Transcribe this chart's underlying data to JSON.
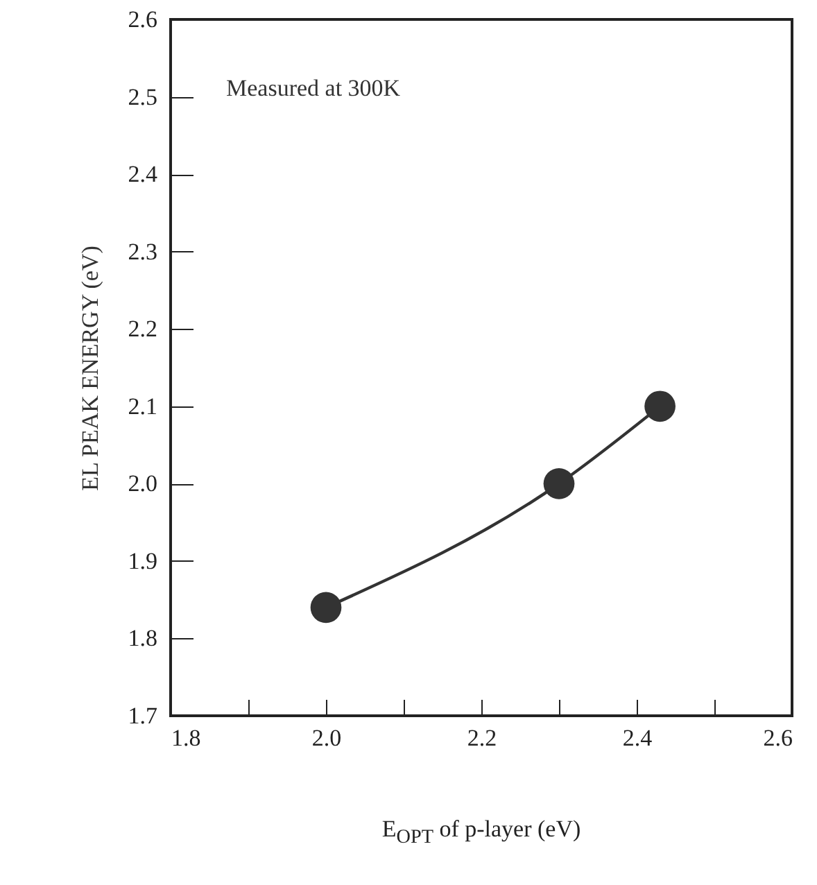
{
  "chart_data": {
    "type": "line",
    "xlabel": "E$_{OPT}$ of p-layer (eV)",
    "ylabel": "EL PEAK ENERGY (eV)",
    "annotations": [
      "Measured at 300K"
    ],
    "x": [
      2.0,
      2.3,
      2.43
    ],
    "series": [
      {
        "color": "#333333",
        "values": [
          1.84,
          2.0,
          2.1
        ]
      }
    ],
    "xlim": [
      1.8,
      2.6
    ],
    "xticks": [
      1.8,
      {
        "value": 1.9,
        "label": null
      },
      {
        "value": 2.0,
        "label": "2.0"
      },
      {
        "value": 2.1,
        "label": null
      },
      2.2,
      {
        "value": 2.3,
        "label": null
      },
      2.4,
      {
        "value": 2.5,
        "label": null
      },
      2.6
    ],
    "ylim": [
      1.7,
      2.6
    ],
    "yticks": [
      1.7,
      1.8,
      1.9,
      {
        "value": 2.0,
        "label": "2.0"
      },
      2.1,
      2.2,
      2.3,
      2.4,
      2.5,
      2.6
    ],
    "grid": false,
    "marker": "circle",
    "line_style": "solid"
  }
}
